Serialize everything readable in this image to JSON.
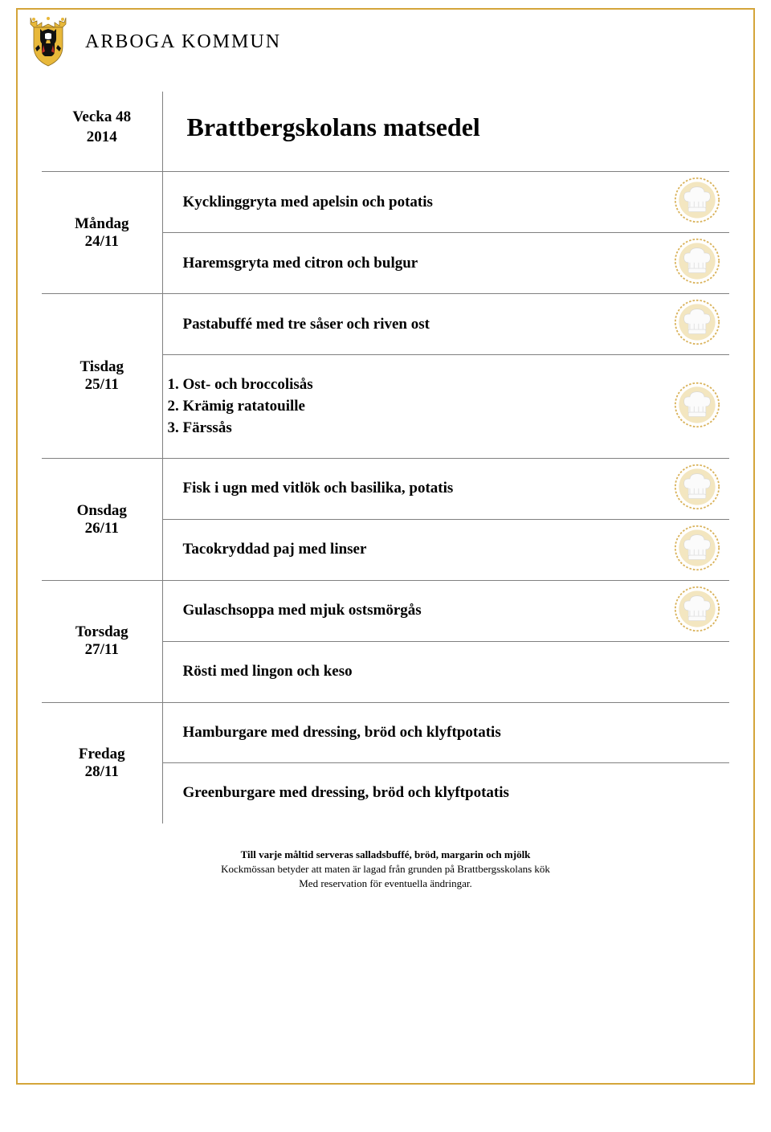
{
  "colors": {
    "border": "#d4a53a",
    "rule": "#808080",
    "hat_ring_outer": "#d9b25a",
    "hat_ring_inner": "#f3e6c0",
    "hat_body": "#fbfbfb",
    "hat_shadow": "#e4e4e4",
    "crest_gold": "#e8b83a",
    "crest_black": "#111111",
    "crest_red": "#c43127",
    "crest_white": "#ffffff"
  },
  "header": {
    "org_name": "ARBOGA KOMMUN"
  },
  "title_block": {
    "week_line1": "Vecka 48",
    "week_line2": "2014",
    "menu_title": "Brattbergskolans matsedel"
  },
  "days": [
    {
      "name": "Måndag",
      "date": "24/11",
      "meals": [
        {
          "text": "Kycklinggryta med apelsin och potatis",
          "icon": true
        },
        {
          "text": "Haremsgryta med citron och bulgur",
          "icon": true
        }
      ]
    },
    {
      "name": "Tisdag",
      "date": "25/11",
      "meals": [
        {
          "text": "Pastabuffé med tre såser och riven ost",
          "icon": true
        },
        {
          "sauces": [
            "Ost- och broccolisås",
            "Krämig ratatouille",
            "Färssås"
          ],
          "icon": true
        }
      ]
    },
    {
      "name": "Onsdag",
      "date": "26/11",
      "meals": [
        {
          "text": "Fisk i ugn med vitlök och basilika, potatis",
          "icon": true
        },
        {
          "text": "Tacokryddad paj med linser",
          "icon": true
        }
      ]
    },
    {
      "name": "Torsdag",
      "date": "27/11",
      "meals": [
        {
          "text": "Gulaschsoppa med mjuk ostsmörgås",
          "icon": true
        },
        {
          "text": "Rösti med lingon och keso",
          "icon": false
        }
      ]
    },
    {
      "name": "Fredag",
      "date": "28/11",
      "meals": [
        {
          "text": "Hamburgare med dressing, bröd och klyftpotatis",
          "icon": false
        },
        {
          "text": "Greenburgare med dressing, bröd och klyftpotatis",
          "icon": false
        }
      ]
    }
  ],
  "footer": {
    "line1": "Till varje måltid serveras salladsbuffé, bröd, margarin och mjölk",
    "line2": "Kockmössan betyder att maten är lagad från grunden på Brattbergsskolans kök",
    "line3": "Med reservation för eventuella ändringar."
  }
}
